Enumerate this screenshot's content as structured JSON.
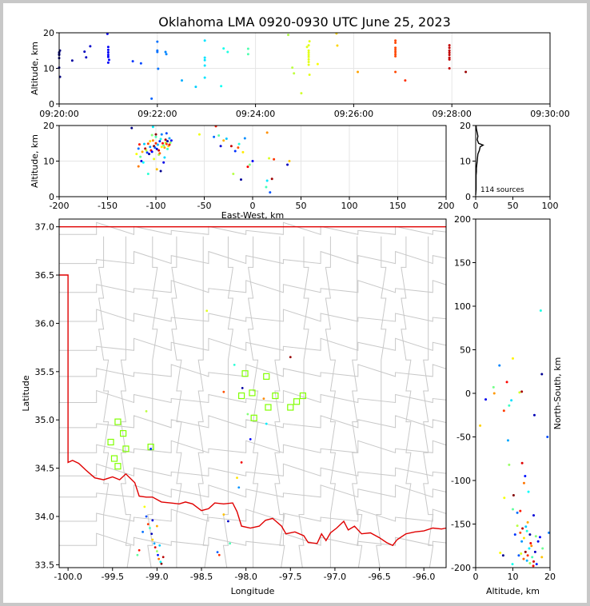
{
  "page": {
    "title": "Oklahoma LMA 0920-0930 UTC June 25, 2023"
  },
  "colors": {
    "state_border": "#e00000",
    "county_lines": "#c8c8c8",
    "station": "#80ff00",
    "grid": "#e6e6e6"
  },
  "chart_data": [
    {
      "id": "time-altitude",
      "type": "scatter",
      "ylabel": "Altitude, km",
      "xlim": [
        "09:20:00",
        "09:30:00"
      ],
      "ylim": [
        0,
        20
      ],
      "x_ticks": [
        "09:20:00",
        "09:22:00",
        "09:24:00",
        "09:26:00",
        "09:28:00",
        "09:30:00"
      ],
      "y_ticks": [
        0,
        10,
        20
      ],
      "grid": true,
      "points": [
        [
          "09:20:00",
          14.5
        ],
        [
          "09:20:00",
          13.8
        ],
        [
          "09:20:00",
          12.9
        ],
        [
          "09:20:00",
          10.2
        ],
        [
          "09:20:01",
          7.6
        ],
        [
          "09:20:01",
          15.0
        ],
        [
          "09:20:00",
          14.0
        ],
        [
          "09:20:16",
          12.2
        ],
        [
          "09:20:31",
          14.7
        ],
        [
          "09:20:33",
          13.1
        ],
        [
          "09:20:38",
          16.2
        ],
        [
          "09:20:59",
          19.7
        ],
        [
          "09:21:00",
          16.0
        ],
        [
          "09:21:00",
          15.2
        ],
        [
          "09:21:00",
          14.5
        ],
        [
          "09:21:00",
          13.8
        ],
        [
          "09:21:00",
          13.2
        ],
        [
          "09:21:00",
          11.6
        ],
        [
          "09:21:01",
          12.4
        ],
        [
          "09:21:30",
          12.0
        ],
        [
          "09:21:40",
          11.4
        ],
        [
          "09:21:53",
          1.5
        ],
        [
          "09:22:00",
          17.5
        ],
        [
          "09:22:00",
          14.6
        ],
        [
          "09:22:00",
          15.0
        ],
        [
          "09:22:01",
          9.9
        ],
        [
          "09:22:10",
          14.6
        ],
        [
          "09:22:11",
          14.0
        ],
        [
          "09:22:30",
          6.6
        ],
        [
          "09:22:47",
          4.8
        ],
        [
          "09:22:58",
          17.8
        ],
        [
          "09:22:58",
          13.0
        ],
        [
          "09:22:58",
          12.3
        ],
        [
          "09:22:58",
          10.8
        ],
        [
          "09:22:58",
          7.4
        ],
        [
          "09:23:18",
          5.0
        ],
        [
          "09:23:21",
          15.6
        ],
        [
          "09:23:26",
          14.6
        ],
        [
          "09:23:51",
          15.5
        ],
        [
          "09:23:51",
          14.0
        ],
        [
          "09:24:40",
          19.4
        ],
        [
          "09:24:45",
          10.2
        ],
        [
          "09:24:47",
          8.6
        ],
        [
          "09:24:56",
          3.0
        ],
        [
          "09:25:03",
          16.0
        ],
        [
          "09:25:05",
          16.5
        ],
        [
          "09:25:05",
          15.0
        ],
        [
          "09:25:05",
          14.4
        ],
        [
          "09:25:05",
          13.8
        ],
        [
          "09:25:05",
          13.2
        ],
        [
          "09:25:05",
          12.5
        ],
        [
          "09:25:05",
          11.8
        ],
        [
          "09:25:05",
          11.0
        ],
        [
          "09:25:06",
          17.6
        ],
        [
          "09:25:06",
          8.2
        ],
        [
          "09:25:16",
          11.2
        ],
        [
          "09:25:39",
          19.8
        ],
        [
          "09:25:40",
          16.4
        ],
        [
          "09:26:05",
          9.0
        ],
        [
          "09:26:51",
          17.8
        ],
        [
          "09:26:51",
          17.2
        ],
        [
          "09:26:51",
          15.8
        ],
        [
          "09:26:51",
          15.2
        ],
        [
          "09:26:51",
          14.6
        ],
        [
          "09:26:51",
          14.0
        ],
        [
          "09:26:51",
          13.4
        ],
        [
          "09:26:51",
          9.0
        ],
        [
          "09:27:03",
          6.6
        ],
        [
          "09:27:57",
          16.5
        ],
        [
          "09:27:57",
          15.8
        ],
        [
          "09:27:57",
          15.0
        ],
        [
          "09:27:57",
          14.4
        ],
        [
          "09:27:57",
          13.8
        ],
        [
          "09:27:57",
          13.0
        ],
        [
          "09:27:57",
          12.5
        ],
        [
          "09:27:57",
          10.0
        ],
        [
          "09:28:17",
          9.0
        ]
      ]
    },
    {
      "id": "east-west-altitude",
      "type": "scatter",
      "xlabel": "East-West, km",
      "ylabel": "Altitude, km",
      "xlim": [
        -200,
        200
      ],
      "ylim": [
        0,
        20
      ],
      "x_ticks": [
        -200,
        -150,
        -100,
        -50,
        0,
        50,
        100,
        150,
        200
      ],
      "y_ticks": [
        0,
        10,
        20
      ],
      "grid": true,
      "points": [
        [
          -125,
          19.3
        ],
        [
          -120,
          12.0
        ],
        [
          -118,
          13.5
        ],
        [
          -117,
          14.7
        ],
        [
          -116,
          11.2
        ],
        [
          -115,
          10.0
        ],
        [
          -114,
          12.6
        ],
        [
          -112,
          14.8
        ],
        [
          -111,
          13.5
        ],
        [
          -110,
          13.0
        ],
        [
          -109,
          12.4
        ],
        [
          -108,
          14.9
        ],
        [
          -108,
          6.4
        ],
        [
          -107,
          12.0
        ],
        [
          -106,
          15.6
        ],
        [
          -106,
          14.0
        ],
        [
          -105,
          13.0
        ],
        [
          -104,
          17.3
        ],
        [
          -104,
          12.6
        ],
        [
          -103,
          15.8
        ],
        [
          -103,
          19.6
        ],
        [
          -102,
          14.2
        ],
        [
          -102,
          10.6
        ],
        [
          -101,
          13.8
        ],
        [
          -100,
          15.0
        ],
        [
          -100,
          16.8
        ],
        [
          -99,
          13.4
        ],
        [
          -99,
          7.7
        ],
        [
          -98,
          14.6
        ],
        [
          -97,
          13.0
        ],
        [
          -97,
          11.8
        ],
        [
          -96,
          15.6
        ],
        [
          -96,
          12.2
        ],
        [
          -95,
          16.2
        ],
        [
          -95,
          7.2
        ],
        [
          -94,
          14.0
        ],
        [
          -94,
          17.5
        ],
        [
          -93,
          15.0
        ],
        [
          -92,
          14.4
        ],
        [
          -92,
          9.6
        ],
        [
          -91,
          13.8
        ],
        [
          -91,
          11.0
        ],
        [
          -90,
          16.0
        ],
        [
          -90,
          15.2
        ],
        [
          -89,
          17.8
        ],
        [
          -89,
          14.8
        ],
        [
          -88,
          13.4
        ],
        [
          -88,
          15.6
        ],
        [
          -87,
          14.2
        ],
        [
          -86,
          16.4
        ],
        [
          -86,
          14.6
        ],
        [
          -85,
          15.2
        ],
        [
          -84,
          15.8
        ],
        [
          -118,
          8.5
        ],
        [
          -113,
          9.6
        ],
        [
          -100,
          17.5
        ],
        [
          -55,
          17.5
        ],
        [
          -40,
          16.8
        ],
        [
          -38,
          19.8
        ],
        [
          -35,
          17.2
        ],
        [
          -33,
          14.2
        ],
        [
          -30,
          15.8
        ],
        [
          -27,
          16.3
        ],
        [
          -22,
          14.2
        ],
        [
          -20,
          6.4
        ],
        [
          -18,
          12.8
        ],
        [
          -15,
          13.8
        ],
        [
          -14,
          14.8
        ],
        [
          -12,
          4.8
        ],
        [
          -10,
          12.5
        ],
        [
          -8,
          16.4
        ],
        [
          -5,
          8.4
        ],
        [
          -3,
          9.0
        ],
        [
          0,
          10.0
        ],
        [
          15,
          18.0
        ],
        [
          15,
          4.5
        ],
        [
          20,
          5.0
        ],
        [
          17,
          10.8
        ],
        [
          18,
          1.2
        ],
        [
          22,
          10.5
        ],
        [
          14,
          2.7
        ],
        [
          36,
          9.0
        ],
        [
          38,
          10.0
        ]
      ]
    },
    {
      "id": "altitude-histogram",
      "type": "line",
      "xlim": [
        0,
        100
      ],
      "ylim": [
        0,
        20
      ],
      "x_ticks": [
        0,
        50,
        100
      ],
      "y_ticks": [
        0,
        10,
        20
      ],
      "annotation": "114 sources",
      "profile": [
        [
          0,
          0.5
        ],
        [
          0.5,
          2
        ],
        [
          0.5,
          4
        ],
        [
          0.5,
          6
        ],
        [
          1,
          7
        ],
        [
          1,
          8
        ],
        [
          1.5,
          9
        ],
        [
          2,
          10
        ],
        [
          2.5,
          11
        ],
        [
          3,
          12
        ],
        [
          5,
          13
        ],
        [
          6,
          14
        ],
        [
          10,
          14.5
        ],
        [
          4,
          15
        ],
        [
          2,
          16
        ],
        [
          3,
          17
        ],
        [
          2,
          18
        ],
        [
          1,
          19
        ],
        [
          0.5,
          20
        ]
      ]
    },
    {
      "id": "plan-view-map",
      "type": "scatter",
      "xlabel": "Longitude",
      "ylabel": "Latitude",
      "xlim": [
        -100.1,
        -95.75
      ],
      "ylim": [
        33.47,
        37.08
      ],
      "x_ticks": [
        -100.0,
        -99.5,
        -99.0,
        -98.5,
        -98.0,
        -97.5,
        -97.0,
        -96.5,
        -96.0
      ],
      "y_ticks": [
        33.5,
        34.0,
        34.5,
        35.0,
        35.5,
        36.0,
        36.5,
        37.0
      ],
      "grid": false,
      "points": [
        [
          -99.12,
          34.0
        ],
        [
          -99.1,
          33.92
        ],
        [
          -99.08,
          33.88
        ],
        [
          -99.06,
          33.82
        ],
        [
          -99.05,
          33.76
        ],
        [
          -99.03,
          33.72
        ],
        [
          -99.02,
          33.68
        ],
        [
          -99.0,
          33.64
        ],
        [
          -98.99,
          33.6
        ],
        [
          -98.98,
          33.56
        ],
        [
          -98.96,
          33.53
        ],
        [
          -98.95,
          33.51
        ],
        [
          -99.14,
          34.1
        ],
        [
          -99.16,
          33.84
        ],
        [
          -99.2,
          33.65
        ],
        [
          -99.22,
          33.6
        ],
        [
          -99.05,
          33.96
        ],
        [
          -99.0,
          33.9
        ],
        [
          -98.97,
          33.7
        ],
        [
          -98.93,
          33.58
        ],
        [
          -99.12,
          35.09
        ],
        [
          -99.07,
          34.7
        ],
        [
          -98.25,
          35.29
        ],
        [
          -98.13,
          35.57
        ],
        [
          -98.04,
          35.33
        ],
        [
          -98.1,
          34.4
        ],
        [
          -98.08,
          34.3
        ],
        [
          -98.05,
          34.56
        ],
        [
          -97.98,
          35.06
        ],
        [
          -97.95,
          34.8
        ],
        [
          -97.8,
          35.22
        ],
        [
          -97.77,
          34.96
        ],
        [
          -97.5,
          35.65
        ],
        [
          -98.44,
          36.13
        ],
        [
          -98.32,
          33.63
        ],
        [
          -98.3,
          33.6
        ],
        [
          -98.18,
          33.72
        ],
        [
          -98.2,
          33.95
        ],
        [
          -98.25,
          34.02
        ]
      ],
      "stations": [
        [
          -99.44,
          34.98
        ],
        [
          -99.38,
          34.86
        ],
        [
          -99.52,
          34.77
        ],
        [
          -99.35,
          34.7
        ],
        [
          -99.07,
          34.72
        ],
        [
          -99.48,
          34.6
        ],
        [
          -99.44,
          34.52
        ],
        [
          -98.05,
          35.25
        ],
        [
          -98.01,
          35.48
        ],
        [
          -97.93,
          35.28
        ],
        [
          -97.91,
          35.02
        ],
        [
          -97.75,
          35.13
        ],
        [
          -97.77,
          35.45
        ],
        [
          -97.67,
          35.25
        ],
        [
          -97.5,
          35.13
        ],
        [
          -97.43,
          35.19
        ],
        [
          -97.36,
          35.25
        ]
      ]
    },
    {
      "id": "altitude-north-south",
      "type": "scatter",
      "xlabel": "Altitude, km",
      "ylabel": "North-South, km",
      "xlim": [
        0,
        20
      ],
      "ylim": [
        -200,
        200
      ],
      "x_ticks": [
        0,
        10,
        20
      ],
      "y_ticks": [
        -200,
        -150,
        -100,
        -50,
        0,
        50,
        100,
        150,
        200
      ],
      "points": [
        [
          17.5,
          95
        ],
        [
          17.8,
          22
        ],
        [
          10,
          40
        ],
        [
          6.4,
          32
        ],
        [
          8.4,
          13
        ],
        [
          4.8,
          7
        ],
        [
          2.7,
          -7
        ],
        [
          5,
          0
        ],
        [
          9.6,
          -8
        ],
        [
          12.4,
          2
        ],
        [
          11.8,
          1
        ],
        [
          19.3,
          -50
        ],
        [
          7.6,
          -20
        ],
        [
          9,
          -14
        ],
        [
          15.8,
          -25
        ],
        [
          1.2,
          -37
        ],
        [
          8.7,
          -54
        ],
        [
          12.5,
          -80
        ],
        [
          9,
          -82
        ],
        [
          13.3,
          -95
        ],
        [
          13.0,
          -103
        ],
        [
          14.2,
          -113
        ],
        [
          10.2,
          -117
        ],
        [
          7.7,
          -120
        ],
        [
          11.2,
          -137
        ],
        [
          12,
          -135
        ],
        [
          10,
          -133
        ],
        [
          15.6,
          -140
        ],
        [
          14.0,
          -148
        ],
        [
          13.5,
          -153
        ],
        [
          12.6,
          -155
        ],
        [
          11.2,
          -152
        ],
        [
          10.6,
          -162
        ],
        [
          12.0,
          -160
        ],
        [
          13.8,
          -158
        ],
        [
          14.6,
          -162
        ],
        [
          13.0,
          -166
        ],
        [
          12.4,
          -170
        ],
        [
          14.8,
          -172
        ],
        [
          16.2,
          -164
        ],
        [
          17.3,
          -165
        ],
        [
          15.0,
          -175
        ],
        [
          14.4,
          -178
        ],
        [
          13.4,
          -182
        ],
        [
          12.2,
          -184
        ],
        [
          11.6,
          -186
        ],
        [
          14.0,
          -186
        ],
        [
          15.2,
          -188
        ],
        [
          16.0,
          -182
        ],
        [
          17.8,
          -188
        ],
        [
          13.8,
          -192
        ],
        [
          15.6,
          -193
        ],
        [
          14.6,
          -195
        ],
        [
          16.4,
          -196
        ],
        [
          12.9,
          -190
        ],
        [
          9.9,
          -196
        ],
        [
          7.4,
          -186
        ],
        [
          6.6,
          -183
        ],
        [
          19.7,
          -160
        ],
        [
          15.5,
          -198
        ],
        [
          18.0,
          -178
        ],
        [
          16.8,
          -170
        ]
      ]
    }
  ]
}
